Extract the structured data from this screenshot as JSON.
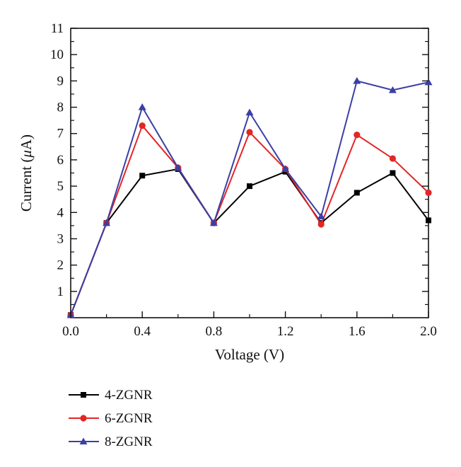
{
  "chart_data": {
    "type": "line",
    "xlabel": "Voltage (V)",
    "ylabel_prefix": "Current (",
    "ylabel_unit_symbol": "μ",
    "ylabel_suffix": "A)",
    "xlim": [
      0.0,
      2.0
    ],
    "ylim": [
      0,
      11
    ],
    "xticks": [
      "0.0",
      "0.4",
      "0.8",
      "1.2",
      "1.6",
      "2.0"
    ],
    "yticks": [
      "1",
      "2",
      "3",
      "4",
      "5",
      "6",
      "7",
      "8",
      "9",
      "10",
      "11"
    ],
    "grid": false,
    "legend_position": "bottom-left, below plot",
    "x": [
      0.0,
      0.2,
      0.4,
      0.6,
      0.8,
      1.0,
      1.2,
      1.4,
      1.6,
      1.8,
      2.0
    ],
    "series": [
      {
        "name": "4-ZGNR",
        "color": "#000000",
        "marker": "square",
        "values": [
          0.1,
          3.6,
          5.4,
          5.65,
          3.6,
          5.0,
          5.55,
          3.6,
          4.75,
          5.5,
          3.7
        ]
      },
      {
        "name": "6-ZGNR",
        "color": "#e32626",
        "marker": "circle",
        "values": [
          0.1,
          3.6,
          7.3,
          5.7,
          3.6,
          7.05,
          5.65,
          3.55,
          6.95,
          6.05,
          4.75
        ]
      },
      {
        "name": "8-ZGNR",
        "color": "#3b3fa6",
        "marker": "triangle",
        "values": [
          0.1,
          3.6,
          8.0,
          5.7,
          3.6,
          7.8,
          5.65,
          3.85,
          9.0,
          8.65,
          8.95
        ]
      }
    ]
  }
}
